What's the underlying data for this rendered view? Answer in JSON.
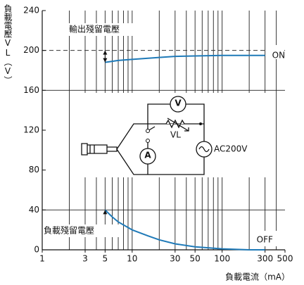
{
  "chart_data": {
    "type": "line",
    "x_label": "負載電流（mA）",
    "y_label": "負載電壓VL（V）",
    "xlim": [
      1,
      500
    ],
    "ylim": [
      0,
      240
    ],
    "log_x": true,
    "xticks": [
      1,
      3,
      5,
      10,
      30,
      50,
      100,
      300,
      500
    ],
    "x_gridlines": [
      2,
      3,
      4,
      5,
      6,
      7,
      8,
      9,
      10,
      20,
      30,
      40,
      50,
      60,
      70,
      80,
      90,
      100,
      200,
      300,
      400
    ],
    "yticks": [
      0,
      40,
      80,
      120,
      160,
      200,
      240
    ],
    "grid_y": [
      40,
      160
    ],
    "reference_line": 200,
    "annotations": [
      "輸出殘留電壓",
      "負載殘留電壓"
    ],
    "circuit": {
      "voltmeter": "V",
      "ammeter": "A",
      "load": "VL",
      "source": "AC200V"
    },
    "series": [
      {
        "name": "ON",
        "color": "#1f7ab8",
        "x": [
          5,
          7,
          10,
          20,
          30,
          50,
          100,
          200,
          300
        ],
        "values": [
          188,
          190,
          191,
          193,
          194,
          194.5,
          195,
          195,
          195
        ]
      },
      {
        "name": "OFF",
        "color": "#1f7ab8",
        "x": [
          5,
          6,
          7,
          10,
          15,
          20,
          30,
          50,
          100,
          200,
          300
        ],
        "values": [
          40,
          33,
          28,
          20,
          14,
          10,
          6,
          3,
          1,
          0,
          0
        ]
      }
    ]
  }
}
